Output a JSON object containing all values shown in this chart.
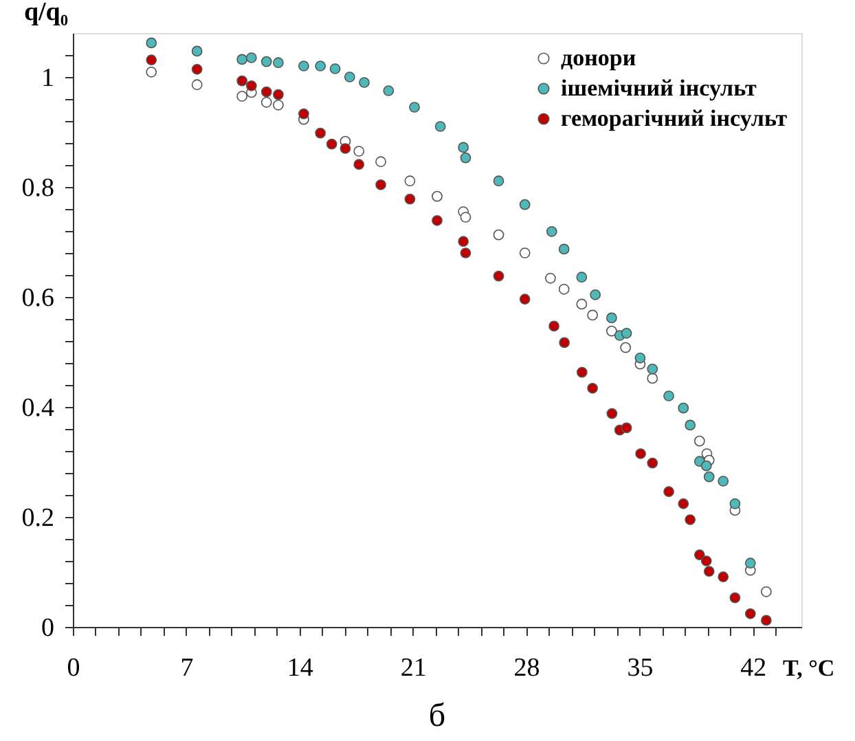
{
  "chart_data": {
    "type": "scatter",
    "xlabel": "T, °C",
    "ylabel": "q/q₀",
    "annotations": [
      "б"
    ],
    "xlim": [
      0,
      45
    ],
    "ylim": [
      0,
      1.08
    ],
    "xticks": [
      0,
      {
        "value": 1.4,
        "label": null
      },
      {
        "value": 2.8,
        "label": null
      },
      {
        "value": 4.2,
        "label": null
      },
      {
        "value": 5.6,
        "label": null
      },
      7,
      {
        "value": 8.4,
        "label": null
      },
      {
        "value": 9.8,
        "label": null
      },
      {
        "value": 11.2,
        "label": null
      },
      {
        "value": 12.6,
        "label": null
      },
      14,
      {
        "value": 15.4,
        "label": null
      },
      {
        "value": 16.8,
        "label": null
      },
      {
        "value": 18.2,
        "label": null
      },
      {
        "value": 19.6,
        "label": null
      },
      21,
      {
        "value": 22.4,
        "label": null
      },
      {
        "value": 23.8,
        "label": null
      },
      {
        "value": 25.2,
        "label": null
      },
      {
        "value": 26.6,
        "label": null
      },
      28,
      {
        "value": 29.4,
        "label": null
      },
      {
        "value": 30.8,
        "label": null
      },
      {
        "value": 32.2,
        "label": null
      },
      {
        "value": 33.6,
        "label": null
      },
      35,
      {
        "value": 36.4,
        "label": null
      },
      {
        "value": 37.8,
        "label": null
      },
      {
        "value": 39.2,
        "label": null
      },
      {
        "value": 40.6,
        "label": null
      },
      42,
      {
        "value": 43.4,
        "label": null
      }
    ],
    "yticks": [
      0,
      {
        "value": 0.04,
        "label": null
      },
      {
        "value": 0.08,
        "label": null
      },
      {
        "value": 0.12,
        "label": null
      },
      {
        "value": 0.16,
        "label": null
      },
      0.2,
      {
        "value": 0.24,
        "label": null
      },
      {
        "value": 0.28,
        "label": null
      },
      {
        "value": 0.32,
        "label": null
      },
      {
        "value": 0.36,
        "label": null
      },
      0.4,
      {
        "value": 0.44,
        "label": null
      },
      {
        "value": 0.48,
        "label": null
      },
      {
        "value": 0.52,
        "label": null
      },
      {
        "value": 0.56,
        "label": null
      },
      0.6,
      {
        "value": 0.64,
        "label": null
      },
      {
        "value": 0.68,
        "label": null
      },
      {
        "value": 0.72,
        "label": null
      },
      {
        "value": 0.76,
        "label": null
      },
      0.8,
      {
        "value": 0.84,
        "label": null
      },
      {
        "value": 0.88,
        "label": null
      },
      {
        "value": 0.92,
        "label": null
      },
      {
        "value": 0.96,
        "label": null
      },
      1,
      {
        "value": 1.04,
        "label": null
      }
    ],
    "grid": false,
    "legend": "top right",
    "marker": "circle",
    "series": [
      {
        "name": "донори",
        "color": "#ffffff",
        "x": [
          4.85,
          7.67,
          10.45,
          11.03,
          11.96,
          12.69,
          14.26,
          16.83,
          17.67,
          19.02,
          20.82,
          22.5,
          24.12,
          24.26,
          26.3,
          27.92,
          29.5,
          30.34,
          31.43,
          32.1,
          33.28,
          33.72,
          34.14,
          35.04,
          35.8,
          38.71,
          39.16,
          39.3,
          40.17,
          40.9,
          41.85,
          42.83
        ],
        "values": [
          1.009,
          0.986,
          0.965,
          0.972,
          0.954,
          0.949,
          0.923,
          0.883,
          0.865,
          0.846,
          0.811,
          0.783,
          0.755,
          0.745,
          0.713,
          0.68,
          0.634,
          0.614,
          0.587,
          0.567,
          0.538,
          null,
          0.508,
          0.478,
          0.452,
          0.338,
          0.315,
          0.303,
          null,
          0.212,
          0.103,
          0.064
        ]
      },
      {
        "name": "ішемічний інсульт",
        "color": "#4fb8b8",
        "x": [
          4.85,
          7.67,
          10.45,
          11.03,
          11.96,
          12.69,
          14.26,
          15.29,
          16.2,
          17.1,
          18.0,
          19.5,
          21.1,
          22.7,
          24.12,
          24.26,
          26.3,
          27.92,
          29.58,
          30.34,
          31.43,
          32.27,
          33.28,
          33.78,
          34.2,
          35.04,
          35.8,
          36.81,
          37.71,
          38.13,
          38.71,
          39.13,
          39.3,
          40.17,
          40.9,
          41.85
        ],
        "values": [
          1.062,
          1.047,
          1.032,
          1.035,
          1.028,
          1.026,
          1.02,
          1.02,
          1.015,
          1.0,
          0.99,
          0.975,
          0.945,
          0.91,
          0.872,
          0.853,
          0.811,
          0.768,
          0.719,
          0.687,
          0.636,
          0.604,
          0.562,
          0.53,
          0.534,
          0.489,
          0.469,
          0.42,
          0.398,
          0.367,
          0.301,
          0.293,
          0.273,
          0.265,
          0.224,
          0.116
        ]
      },
      {
        "name": "геморагічний інсульт",
        "color": "#c00000",
        "x": [
          4.85,
          7.67,
          10.45,
          11.03,
          11.96,
          12.69,
          14.26,
          15.29,
          15.99,
          16.83,
          17.67,
          19.02,
          20.82,
          22.5,
          24.12,
          24.26,
          26.3,
          27.92,
          29.72,
          30.36,
          31.45,
          32.1,
          33.3,
          33.78,
          34.2,
          35.07,
          35.8,
          36.81,
          37.71,
          38.13,
          38.71,
          39.13,
          39.3,
          40.17,
          40.9,
          41.85,
          42.83
        ],
        "values": [
          1.031,
          1.014,
          0.993,
          0.984,
          0.973,
          0.968,
          0.933,
          0.898,
          0.878,
          0.87,
          0.841,
          0.804,
          0.778,
          0.739,
          0.701,
          0.68,
          0.638,
          0.596,
          0.547,
          0.517,
          0.463,
          0.434,
          0.388,
          0.358,
          0.362,
          0.315,
          0.298,
          0.246,
          0.224,
          0.195,
          0.131,
          0.12,
          0.101,
          0.091,
          0.053,
          0.024,
          0.012
        ]
      }
    ]
  }
}
